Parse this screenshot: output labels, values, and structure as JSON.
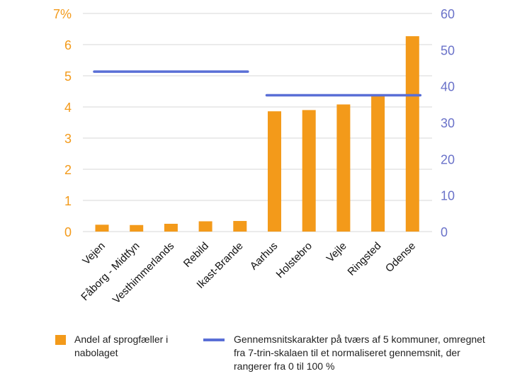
{
  "chart_data": {
    "type": "bar",
    "categories": [
      "Vejen",
      "Fåborg - Midtfyn",
      "Vesthimmerlands",
      "Rebild",
      "Ikast-Brande",
      "Aarhus",
      "Holstebro",
      "Vejle",
      "Ringsted",
      "Odense"
    ],
    "series": [
      {
        "name": "Andel af sprogfæller i nabolaget",
        "axis": "left",
        "type": "bar",
        "values": [
          0.22,
          0.21,
          0.25,
          0.33,
          0.34,
          3.86,
          3.9,
          4.08,
          4.37,
          6.27
        ]
      },
      {
        "name": "Gennemsnitskarakter på tværs af 5 kommuner, omregnet fra 7-trin-skalaen til et normaliseret gennemsnit, der rangerer fra 0 til 100 %",
        "axis": "right",
        "type": "line",
        "segments": [
          {
            "from": "Vejen",
            "to": "Ikast-Brande",
            "value": 44
          },
          {
            "from": "Aarhus",
            "to": "Odense",
            "value": 37.5
          }
        ]
      }
    ],
    "left_axis": {
      "ylim": [
        0,
        7
      ],
      "ticks": [
        "0",
        "1",
        "2",
        "3",
        "4",
        "5",
        "6",
        "7%"
      ]
    },
    "right_axis": {
      "ylim": [
        0,
        60
      ],
      "ticks": [
        "0",
        "10",
        "20",
        "30",
        "40",
        "50",
        "60"
      ]
    },
    "grid": true,
    "colors": {
      "bar": "#f39a1a",
      "line": "#5a6fd6",
      "grid": "#d7d7d7",
      "left_tick": "#f39a1a",
      "right_tick": "#6a72c9"
    }
  },
  "legend": {
    "bar_label": "Andel af sprogfæller i nabolaget",
    "line_label": "Gennemsnitskarakter på tværs af 5 kommuner, omregnet fra 7-trin-skalaen til et normaliseret gennemsnit, der rangerer fra 0 til 100 %"
  }
}
